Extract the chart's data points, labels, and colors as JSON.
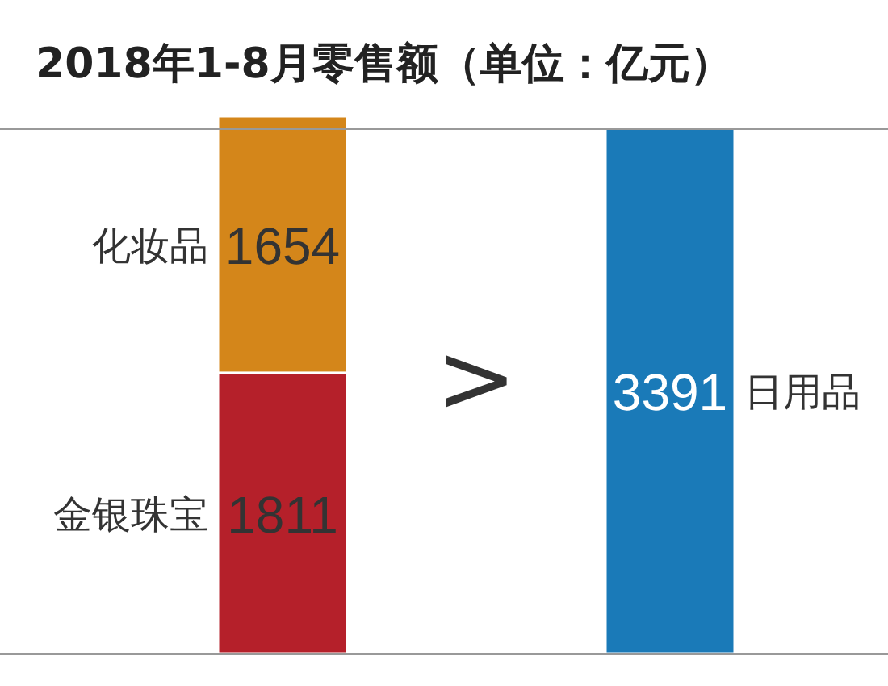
{
  "chart_data": {
    "type": "bar",
    "title": "2018年1-8月零售额（单位：亿元）",
    "categories": [
      null,
      null
    ],
    "stacked": true,
    "data_labels": true,
    "series": [
      {
        "name": "金银珠宝",
        "color": "#b5202a",
        "values": [
          1811,
          null
        ]
      },
      {
        "name": "化妆品",
        "color": "#d4861a",
        "values": [
          1654,
          null
        ]
      },
      {
        "name": "日用品",
        "color": "#1a7ab8",
        "values": [
          null,
          3391
        ]
      }
    ],
    "ref_lines": [
      {
        "axis": "y",
        "value": 3382,
        "color": "#999999"
      }
    ],
    "annotations": [
      ">"
    ]
  }
}
